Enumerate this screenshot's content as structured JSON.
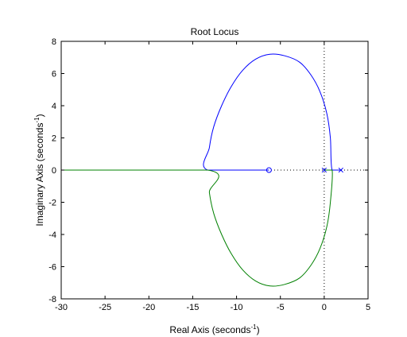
{
  "chart_data": {
    "type": "line",
    "title": "Root Locus",
    "xlabel": "Real Axis (seconds",
    "ylabel": "Imaginary Axis (seconds",
    "label_exponent": "-1",
    "label_close": ")",
    "xlim": [
      -30,
      5
    ],
    "ylim": [
      -8,
      8
    ],
    "xticks": [
      -30,
      -25,
      -20,
      -15,
      -10,
      -5,
      0,
      5
    ],
    "yticks": [
      -8,
      -6,
      -4,
      -2,
      0,
      2,
      4,
      6,
      8
    ],
    "xtick_labels": [
      "-30",
      "-25",
      "-20",
      "-15",
      "-10",
      "-5",
      "0",
      "5"
    ],
    "ytick_labels": [
      "-8",
      "-6",
      "-4",
      "-2",
      "0",
      "2",
      "4",
      "6",
      "8"
    ],
    "grid": false,
    "series": [
      {
        "color": "#0000ff",
        "points": [
          [
            1.9,
            0
          ],
          [
            0.9,
            0
          ],
          [
            0.7,
            2.0
          ],
          [
            0.3,
            3.5
          ],
          [
            -0.5,
            4.9
          ],
          [
            -1.5,
            5.9
          ],
          [
            -2.8,
            6.7
          ],
          [
            -4.5,
            7.1
          ],
          [
            -6.2,
            7.2
          ],
          [
            -7.8,
            6.9
          ],
          [
            -9.3,
            6.2
          ],
          [
            -10.6,
            5.2
          ],
          [
            -11.7,
            4.0
          ],
          [
            -12.6,
            2.7
          ],
          [
            -13.1,
            1.4
          ],
          [
            -13.3,
            0
          ],
          [
            -6.3,
            0
          ]
        ]
      },
      {
        "color": "#008000",
        "points": [
          [
            0,
            0
          ],
          [
            0.9,
            0
          ],
          [
            0.7,
            -2.0
          ],
          [
            0.3,
            -3.5
          ],
          [
            -0.5,
            -4.9
          ],
          [
            -1.5,
            -5.9
          ],
          [
            -2.8,
            -6.7
          ],
          [
            -4.5,
            -7.1
          ],
          [
            -6.2,
            -7.2
          ],
          [
            -7.8,
            -6.9
          ],
          [
            -9.3,
            -6.2
          ],
          [
            -10.6,
            -5.2
          ],
          [
            -11.7,
            -4.0
          ],
          [
            -12.6,
            -2.7
          ],
          [
            -13.1,
            -1.4
          ],
          [
            -13.3,
            0
          ],
          [
            -30,
            0
          ]
        ]
      }
    ],
    "poles": [
      [
        0,
        0
      ],
      [
        1.9,
        0
      ]
    ],
    "zeros": [
      [
        -6.3,
        0
      ]
    ],
    "reference_lines": {
      "vertical_x": 0,
      "horizontal_y": 0,
      "style": "dotted"
    }
  }
}
